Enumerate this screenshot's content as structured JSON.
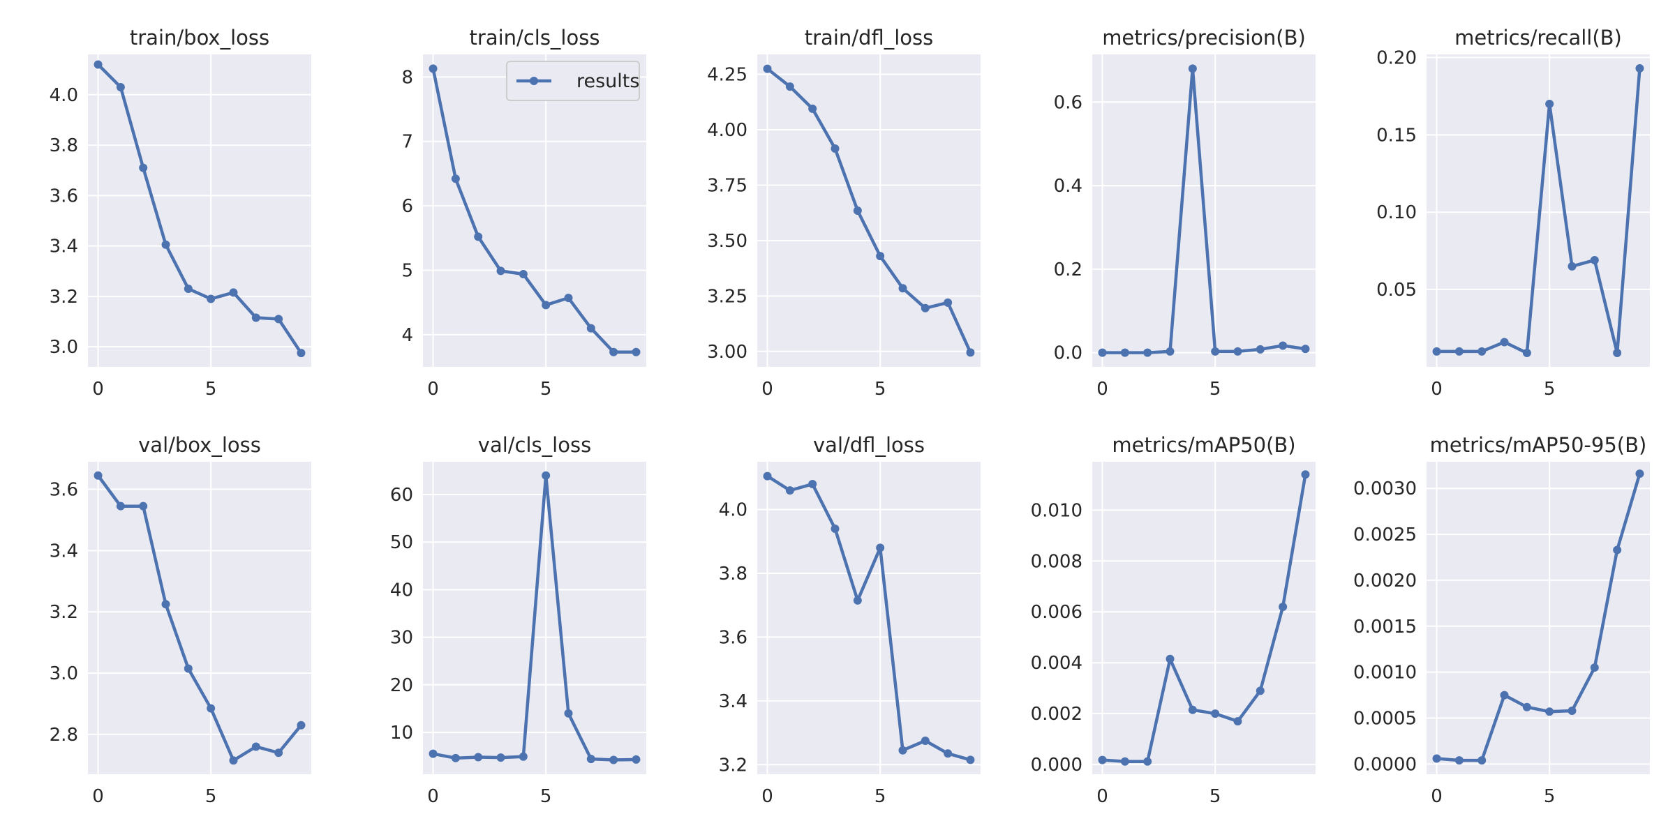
{
  "figure": {
    "style": {
      "background": "#ffffff",
      "plot_background": "#EAEAF2",
      "grid_color": "#ffffff",
      "line_color": "#4C72B0",
      "text_color": "#262626",
      "legend_border": "#CCCCCC"
    }
  },
  "chart_data": [
    {
      "type": "line",
      "title": "train/box_loss",
      "x": [
        0,
        1,
        2,
        3,
        4,
        5,
        6,
        7,
        8,
        9
      ],
      "series": [
        {
          "name": "results",
          "values": [
            4.12,
            4.03,
            3.71,
            3.405,
            3.23,
            3.19,
            3.215,
            3.115,
            3.11,
            2.975
          ]
        }
      ],
      "xlim": [
        -0.45,
        9.45
      ],
      "ylim": [
        2.92,
        4.16
      ],
      "xticks": [
        0,
        5
      ],
      "xtick_labels": [
        "0",
        "5"
      ],
      "yticks": [
        3.0,
        3.2,
        3.4,
        3.6,
        3.8,
        4.0
      ],
      "ytick_labels": [
        "3.0",
        "3.2",
        "3.4",
        "3.6",
        "3.8",
        "4.0"
      ],
      "grid": true,
      "legend": false
    },
    {
      "type": "line",
      "title": "train/cls_loss",
      "x": [
        0,
        1,
        2,
        3,
        4,
        5,
        6,
        7,
        8,
        9
      ],
      "series": [
        {
          "name": "results",
          "values": [
            8.13,
            6.42,
            5.52,
            4.99,
            4.94,
            4.46,
            4.57,
            4.1,
            3.73,
            3.73
          ]
        }
      ],
      "xlim": [
        -0.45,
        9.45
      ],
      "ylim": [
        3.5,
        8.35
      ],
      "xticks": [
        0,
        5
      ],
      "xtick_labels": [
        "0",
        "5"
      ],
      "yticks": [
        4,
        5,
        6,
        7,
        8
      ],
      "ytick_labels": [
        "4",
        "5",
        "6",
        "7",
        "8"
      ],
      "grid": true,
      "legend": true,
      "legend_position": "upper right"
    },
    {
      "type": "line",
      "title": "train/dfl_loss",
      "x": [
        0,
        1,
        2,
        3,
        4,
        5,
        6,
        7,
        8,
        9
      ],
      "series": [
        {
          "name": "results",
          "values": [
            4.275,
            4.195,
            4.095,
            3.915,
            3.635,
            3.43,
            3.285,
            3.195,
            3.22,
            2.995
          ]
        }
      ],
      "xlim": [
        -0.45,
        9.45
      ],
      "ylim": [
        2.93,
        4.34
      ],
      "xticks": [
        0,
        5
      ],
      "xtick_labels": [
        "0",
        "5"
      ],
      "yticks": [
        3.0,
        3.25,
        3.5,
        3.75,
        4.0,
        4.25
      ],
      "ytick_labels": [
        "3.00",
        "3.25",
        "3.50",
        "3.75",
        "4.00",
        "4.25"
      ],
      "grid": true,
      "legend": false
    },
    {
      "type": "line",
      "title": "metrics/precision(B)",
      "x": [
        0,
        1,
        2,
        3,
        4,
        5,
        6,
        7,
        8,
        9
      ],
      "series": [
        {
          "name": "results",
          "values": [
            0.0,
            0.0,
            0.0,
            0.003,
            0.68,
            0.003,
            0.003,
            0.008,
            0.017,
            0.009
          ]
        }
      ],
      "xlim": [
        -0.45,
        9.45
      ],
      "ylim": [
        -0.034,
        0.714
      ],
      "xticks": [
        0,
        5
      ],
      "xtick_labels": [
        "0",
        "5"
      ],
      "yticks": [
        0.0,
        0.2,
        0.4,
        0.6
      ],
      "ytick_labels": [
        "0.0",
        "0.2",
        "0.4",
        "0.6"
      ],
      "grid": true,
      "legend": false
    },
    {
      "type": "line",
      "title": "metrics/recall(B)",
      "x": [
        0,
        1,
        2,
        3,
        4,
        5,
        6,
        7,
        8,
        9
      ],
      "series": [
        {
          "name": "results",
          "values": [
            0.01,
            0.01,
            0.01,
            0.016,
            0.009,
            0.17,
            0.065,
            0.069,
            0.009,
            0.193
          ]
        }
      ],
      "xlim": [
        -0.45,
        9.45
      ],
      "ylim": [
        0.0,
        0.202
      ],
      "xticks": [
        0,
        5
      ],
      "xtick_labels": [
        "0",
        "5"
      ],
      "yticks": [
        0.05,
        0.1,
        0.15,
        0.2
      ],
      "ytick_labels": [
        "0.05",
        "0.10",
        "0.15",
        "0.20"
      ],
      "grid": true,
      "legend": false
    },
    {
      "type": "line",
      "title": "val/box_loss",
      "x": [
        0,
        1,
        2,
        3,
        4,
        5,
        6,
        7,
        8,
        9
      ],
      "series": [
        {
          "name": "results",
          "values": [
            3.645,
            3.545,
            3.545,
            3.225,
            3.015,
            2.885,
            2.715,
            2.76,
            2.74,
            2.83
          ]
        }
      ],
      "xlim": [
        -0.45,
        9.45
      ],
      "ylim": [
        2.67,
        3.69
      ],
      "xticks": [
        0,
        5
      ],
      "xtick_labels": [
        "0",
        "5"
      ],
      "yticks": [
        2.8,
        3.0,
        3.2,
        3.4,
        3.6
      ],
      "ytick_labels": [
        "2.8",
        "3.0",
        "3.2",
        "3.4",
        "3.6"
      ],
      "grid": true,
      "legend": false
    },
    {
      "type": "line",
      "title": "val/cls_loss",
      "x": [
        0,
        1,
        2,
        3,
        4,
        5,
        6,
        7,
        8,
        9
      ],
      "series": [
        {
          "name": "results",
          "values": [
            5.5,
            4.6,
            4.8,
            4.7,
            4.9,
            64.0,
            14.0,
            4.4,
            4.2,
            4.3
          ]
        }
      ],
      "xlim": [
        -0.45,
        9.45
      ],
      "ylim": [
        1.2,
        66.9
      ],
      "xticks": [
        0,
        5
      ],
      "xtick_labels": [
        "0",
        "5"
      ],
      "yticks": [
        10,
        20,
        30,
        40,
        50,
        60
      ],
      "ytick_labels": [
        "10",
        "20",
        "30",
        "40",
        "50",
        "60"
      ],
      "grid": true,
      "legend": false
    },
    {
      "type": "line",
      "title": "val/dfl_loss",
      "x": [
        0,
        1,
        2,
        3,
        4,
        5,
        6,
        7,
        8,
        9
      ],
      "series": [
        {
          "name": "results",
          "values": [
            4.105,
            4.06,
            4.08,
            3.94,
            3.715,
            3.88,
            3.245,
            3.275,
            3.235,
            3.215
          ]
        }
      ],
      "xlim": [
        -0.45,
        9.45
      ],
      "ylim": [
        3.17,
        4.15
      ],
      "xticks": [
        0,
        5
      ],
      "xtick_labels": [
        "0",
        "5"
      ],
      "yticks": [
        3.2,
        3.4,
        3.6,
        3.8,
        4.0
      ],
      "ytick_labels": [
        "3.2",
        "3.4",
        "3.6",
        "3.8",
        "4.0"
      ],
      "grid": true,
      "legend": false
    },
    {
      "type": "line",
      "title": "metrics/mAP50(B)",
      "x": [
        0,
        1,
        2,
        3,
        4,
        5,
        6,
        7,
        8,
        9
      ],
      "series": [
        {
          "name": "results",
          "values": [
            0.00018,
            0.00012,
            0.00012,
            0.00415,
            0.00215,
            0.002,
            0.0017,
            0.0029,
            0.0062,
            0.0114
          ]
        }
      ],
      "xlim": [
        -0.45,
        9.45
      ],
      "ylim": [
        -0.00038,
        0.0119
      ],
      "xticks": [
        0,
        5
      ],
      "xtick_labels": [
        "0",
        "5"
      ],
      "yticks": [
        0.0,
        0.002,
        0.004,
        0.006,
        0.008,
        0.01
      ],
      "ytick_labels": [
        "0.000",
        "0.002",
        "0.004",
        "0.006",
        "0.008",
        "0.010"
      ],
      "grid": true,
      "legend": false
    },
    {
      "type": "line",
      "title": "metrics/mAP50-95(B)",
      "x": [
        0,
        1,
        2,
        3,
        4,
        5,
        6,
        7,
        8,
        9
      ],
      "series": [
        {
          "name": "results",
          "values": [
            6e-05,
            4e-05,
            4e-05,
            0.00075,
            0.00062,
            0.00057,
            0.00058,
            0.00105,
            0.00233,
            0.00316
          ]
        }
      ],
      "xlim": [
        -0.45,
        9.45
      ],
      "ylim": [
        -0.000111,
        0.00329
      ],
      "xticks": [
        0,
        5
      ],
      "xtick_labels": [
        "0",
        "5"
      ],
      "yticks": [
        0.0,
        0.0005,
        0.001,
        0.0015,
        0.002,
        0.0025,
        0.003
      ],
      "ytick_labels": [
        "0.0000",
        "0.0005",
        "0.0010",
        "0.0015",
        "0.0020",
        "0.0025",
        "0.0030"
      ],
      "grid": true,
      "legend": false
    }
  ]
}
